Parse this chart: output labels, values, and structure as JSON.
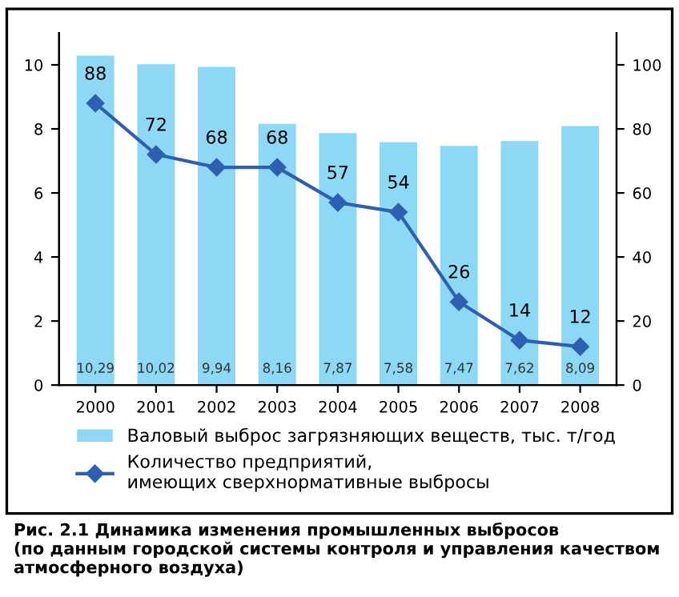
{
  "chart_data": {
    "type": "bar",
    "categories": [
      "2000",
      "2001",
      "2002",
      "2003",
      "2004",
      "2005",
      "2006",
      "2007",
      "2008"
    ],
    "series": [
      {
        "name": "Валовый выброс загрязняющих веществ, тыс. т/год",
        "color": "#8dd8f5",
        "values": [
          10.29,
          10.02,
          9.94,
          8.16,
          7.87,
          7.58,
          7.47,
          7.62,
          8.09
        ],
        "value_labels": [
          "10,29",
          "10,02",
          "9,94",
          "8,16",
          "7,87",
          "7,58",
          "7,47",
          "7,62",
          "8,09"
        ]
      },
      {
        "name": "Количество предприятий,\nимеющих сверхнормативные выбросы",
        "type": "line",
        "axis": "y2",
        "color": "#2f5fb3",
        "values": [
          88,
          72,
          68,
          68,
          57,
          54,
          26,
          14,
          12
        ],
        "value_labels": [
          "88",
          "72",
          "68",
          "68",
          "57",
          "54",
          "26",
          "14",
          "12"
        ]
      }
    ],
    "ylim": [
      0,
      11
    ],
    "yticks": [
      0,
      2,
      4,
      6,
      8,
      10
    ],
    "y2lim": [
      0,
      110
    ],
    "y2ticks": [
      0,
      20,
      40,
      60,
      80,
      100
    ],
    "marker": "diamond",
    "line_style": "solid",
    "grid": false,
    "legend": "bottom",
    "annotations": [
      "Рис. 2.1 Динамика изменения промышленных выбросов\n(по данным городской системы контроля и управления качеством\nатмосферного воздуха)"
    ]
  }
}
